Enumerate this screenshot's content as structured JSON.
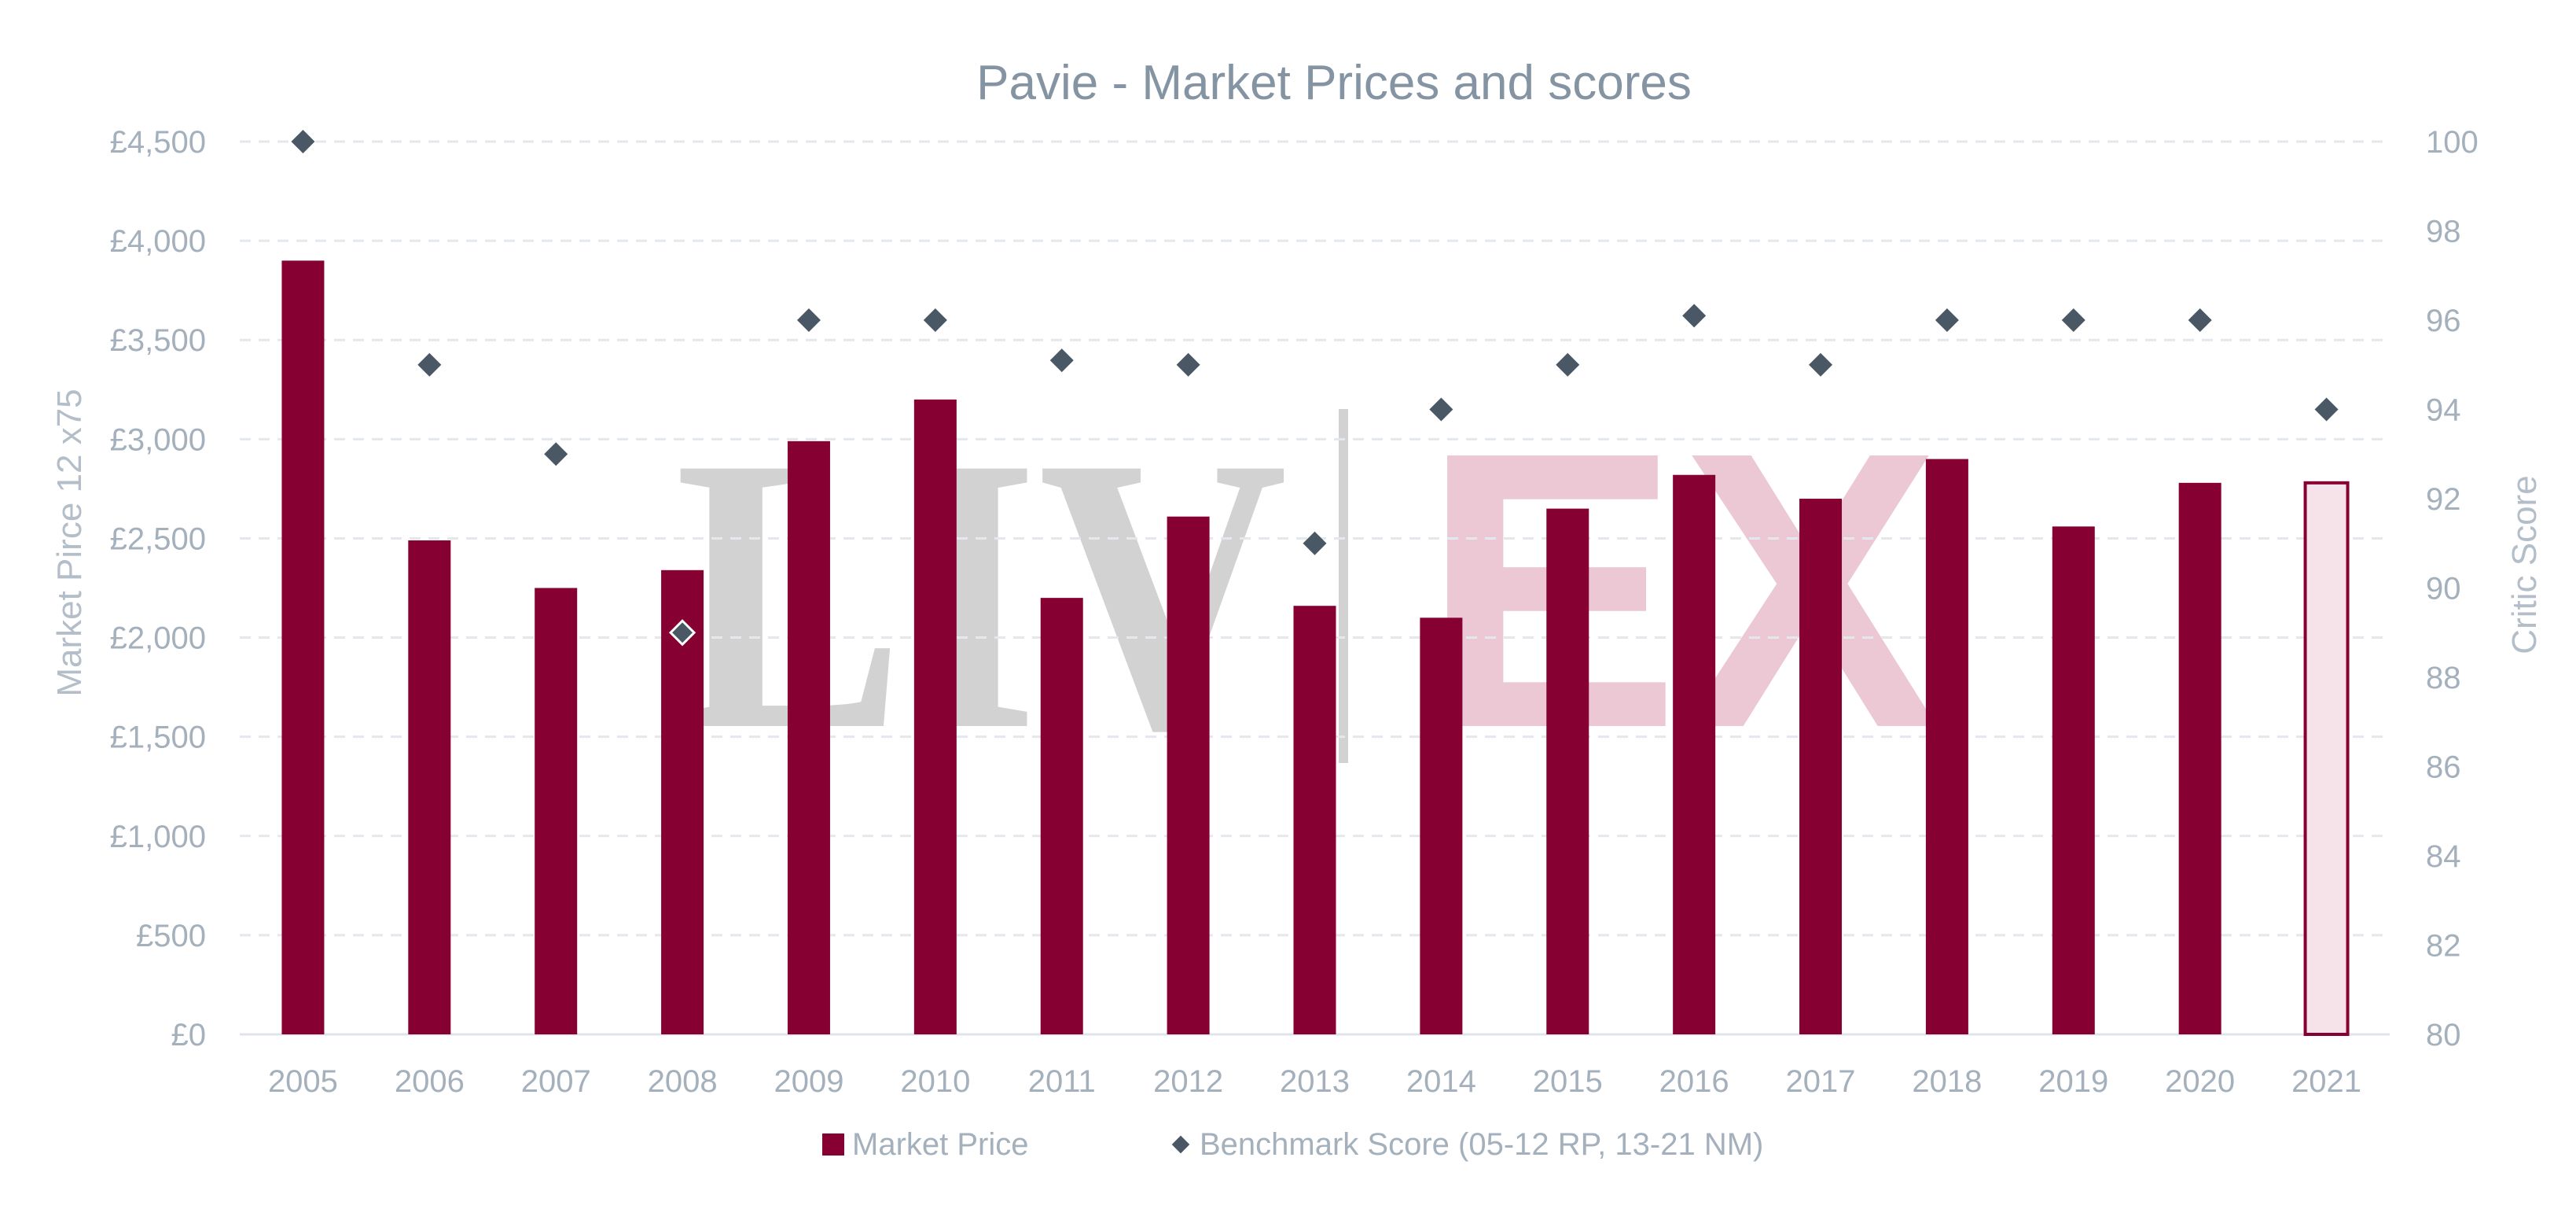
{
  "chart_data": {
    "type": "bar",
    "title": "Pavie - Market Prices and scores",
    "categories": [
      "2005",
      "2006",
      "2007",
      "2008",
      "2009",
      "2010",
      "2011",
      "2012",
      "2013",
      "2014",
      "2015",
      "2016",
      "2017",
      "2018",
      "2019",
      "2020",
      "2021"
    ],
    "series": [
      {
        "name": "Market Price",
        "type": "bar",
        "axis": "left",
        "values": [
          3900,
          2490,
          2250,
          2340,
          2990,
          3200,
          2200,
          2610,
          2160,
          2100,
          2650,
          2820,
          2700,
          2900,
          2560,
          2780,
          2780
        ],
        "color": "#870032",
        "highlight_last": {
          "fill": "#f6e3ea",
          "stroke": "#870032"
        }
      },
      {
        "name": "Benchmark Score (05-12 RP, 13-21 NM)",
        "type": "scatter",
        "axis": "right",
        "marker": "diamond",
        "values": [
          100,
          95,
          93,
          89,
          96,
          96,
          95.1,
          95,
          91,
          94,
          95,
          96.1,
          95,
          96,
          96,
          96,
          94
        ],
        "color": "#4a5865"
      }
    ],
    "ylabel": "Market Pirce 12 x75",
    "y2label": "Critic Score",
    "ylim": [
      0,
      4500
    ],
    "y2lim": [
      80,
      100
    ],
    "y_ticks": [
      "£0",
      "£500",
      "£1,000",
      "£1,500",
      "£2,000",
      "£2,500",
      "£3,000",
      "£3,500",
      "£4,000",
      "£4,500"
    ],
    "y2_ticks": [
      "80",
      "82",
      "84",
      "86",
      "88",
      "90",
      "92",
      "94",
      "96",
      "98",
      "100"
    ],
    "grid": true,
    "legend_position": "bottom",
    "watermark": {
      "text_left": "LIV",
      "text_right": "EX",
      "left_color": "#d2d2d2",
      "right_color": "#ebc8d3"
    }
  }
}
